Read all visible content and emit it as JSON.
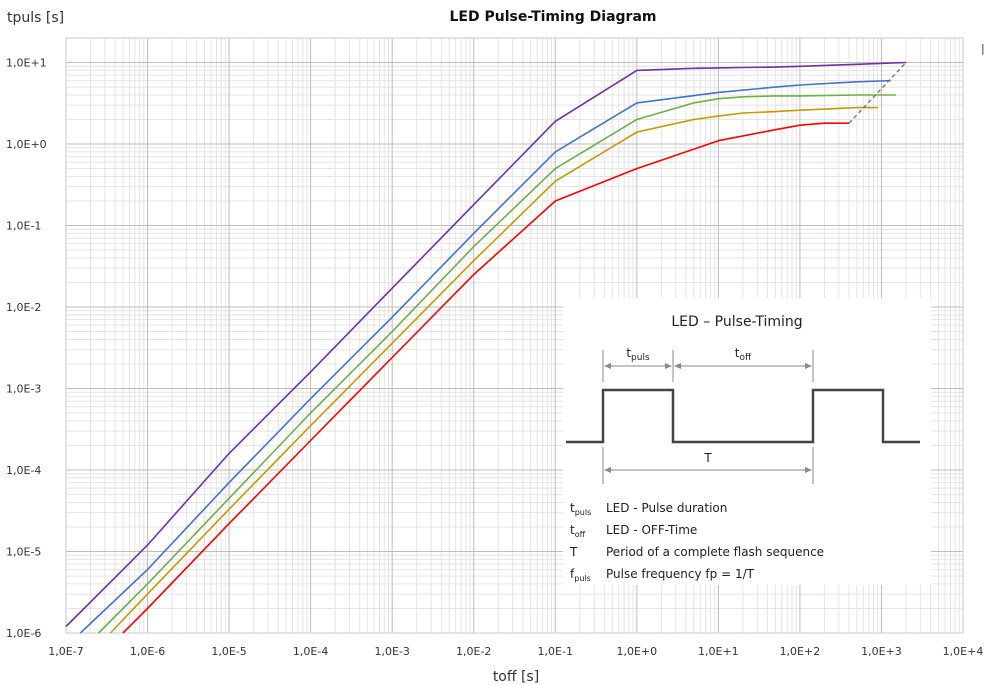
{
  "chart_data": {
    "type": "line",
    "title": "LED Pulse-Timing Diagram",
    "xlabel": "toff [s]",
    "ylabel": "tpuls [s]",
    "x_scale": "log",
    "y_scale": "log",
    "xlim": [
      1e-07,
      10000
    ],
    "ylim": [
      1e-06,
      20
    ],
    "grid": true,
    "x_ticks": [
      1e-07,
      1e-06,
      1e-05,
      0.0001,
      0.001,
      0.01,
      0.1,
      1,
      10,
      100,
      1000,
      10000
    ],
    "x_tick_labels": [
      "1,0E-7",
      "1,0E-6",
      "1,0E-5",
      "1,0E-4",
      "1,0E-3",
      "1,0E-2",
      "1,0E-1",
      "1,0E+0",
      "1,0E+1",
      "1,0E+2",
      "1,0E+3",
      "1,0E+4"
    ],
    "y_ticks": [
      1e-06,
      1e-05,
      0.0001,
      0.001,
      0.01,
      0.1,
      1,
      10
    ],
    "y_tick_labels": [
      "1,0E-6",
      "1,0E-5",
      "1,0E-4",
      "1,0E-3",
      "1,0E-2",
      "1,0E-1",
      "1,0E+0",
      "1,0E+1"
    ],
    "series": [
      {
        "color": "#7030a0",
        "x": [
          1e-07,
          1e-06,
          1e-05,
          0.0001,
          0.001,
          0.01,
          0.1,
          1,
          5,
          10,
          20,
          50,
          100,
          500,
          2000
        ],
        "y": [
          1.2e-06,
          1.2e-05,
          0.00016,
          0.0016,
          0.017,
          0.18,
          1.9,
          8.0,
          8.5,
          8.6,
          8.7,
          8.8,
          9.0,
          9.5,
          10
        ]
      },
      {
        "color": "#4472c4",
        "x": [
          1.5e-07,
          1e-06,
          1e-05,
          0.0001,
          0.001,
          0.01,
          0.1,
          1,
          10,
          50,
          100,
          500,
          1300
        ],
        "y": [
          1e-06,
          6e-06,
          7e-05,
          0.00075,
          0.0075,
          0.08,
          0.8,
          3.2,
          4.3,
          5.0,
          5.3,
          5.8,
          6.0
        ]
      },
      {
        "color": "#70ad47",
        "x": [
          2.5e-07,
          1e-06,
          1e-05,
          0.0001,
          0.001,
          0.01,
          0.1,
          1,
          5,
          10,
          20,
          50,
          100,
          500,
          1500
        ],
        "y": [
          1e-06,
          4e-06,
          4.5e-05,
          0.0005,
          0.005,
          0.055,
          0.5,
          2.0,
          3.2,
          3.6,
          3.8,
          3.9,
          3.9,
          4.0,
          4.0
        ]
      },
      {
        "color": "#c59a00",
        "x": [
          3.5e-07,
          1e-06,
          1e-05,
          0.0001,
          0.001,
          0.01,
          0.1,
          1,
          5,
          10,
          20,
          50,
          100,
          500,
          900
        ],
        "y": [
          1e-06,
          3e-06,
          3.3e-05,
          0.00035,
          0.0036,
          0.037,
          0.35,
          1.4,
          2.0,
          2.2,
          2.4,
          2.5,
          2.6,
          2.8,
          2.8
        ]
      },
      {
        "color": "#ff0000",
        "x": [
          5e-07,
          1e-06,
          1e-05,
          0.0001,
          0.001,
          0.01,
          0.1,
          1,
          10,
          50,
          100,
          200,
          400
        ],
        "y": [
          1e-06,
          2e-06,
          2.2e-05,
          0.00023,
          0.0024,
          0.025,
          0.2,
          0.5,
          1.1,
          1.5,
          1.7,
          1.8,
          1.8
        ]
      }
    ],
    "dashed_line": {
      "color": "#777777",
      "x": [
        400,
        2000
      ],
      "y": [
        1.8,
        10
      ]
    }
  },
  "legend_marker": "|",
  "inset": {
    "title": "LED – Pulse-Timing",
    "tpuls_base": "t",
    "tpuls_sub": "puls",
    "toff_base": "t",
    "toff_sub": "off",
    "period_label": "T",
    "descriptions": [
      {
        "base": "t",
        "sub": "puls",
        "text": "LED - Pulse duration"
      },
      {
        "base": "t",
        "sub": "off",
        "text": "LED - OFF-Time"
      },
      {
        "base": "T",
        "sub": "",
        "text": "Period of a complete flash sequence"
      },
      {
        "base": "f",
        "sub": "puls",
        "text": "Pulse frequency fp = 1/T"
      }
    ]
  }
}
